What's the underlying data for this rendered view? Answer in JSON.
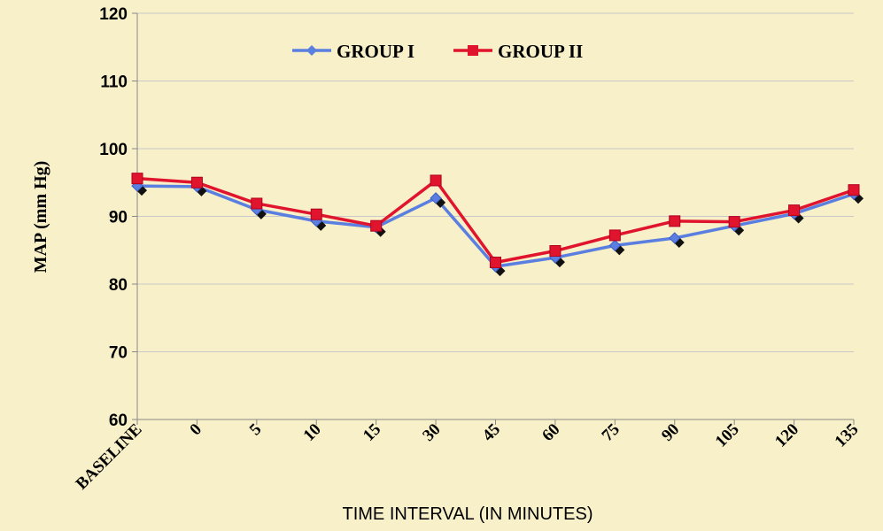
{
  "chart_data": {
    "type": "line",
    "title": "",
    "xlabel": "TIME INTERVAL (IN MINUTES)",
    "ylabel": "MAP (mm Hg)",
    "ylim": [
      60,
      120
    ],
    "yticks": [
      60,
      70,
      80,
      90,
      100,
      110,
      120
    ],
    "categories": [
      "BASELINE",
      "0",
      "5",
      "10",
      "15",
      "30",
      "45",
      "60",
      "75",
      "90",
      "105",
      "120",
      "135"
    ],
    "grid": true,
    "legend_position": "top",
    "series": [
      {
        "name": "GROUP I",
        "color": "#5b7fe0",
        "marker": "diamond",
        "values": [
          94.5,
          94.4,
          91.0,
          89.3,
          88.4,
          92.7,
          82.6,
          83.9,
          85.7,
          86.8,
          88.6,
          90.4,
          93.3
        ]
      },
      {
        "name": "GROUP II",
        "color": "#e0142d",
        "marker": "square",
        "values": [
          95.6,
          95.0,
          91.9,
          90.3,
          88.6,
          95.3,
          83.2,
          84.9,
          87.2,
          89.3,
          89.2,
          90.9,
          93.9
        ]
      }
    ]
  }
}
